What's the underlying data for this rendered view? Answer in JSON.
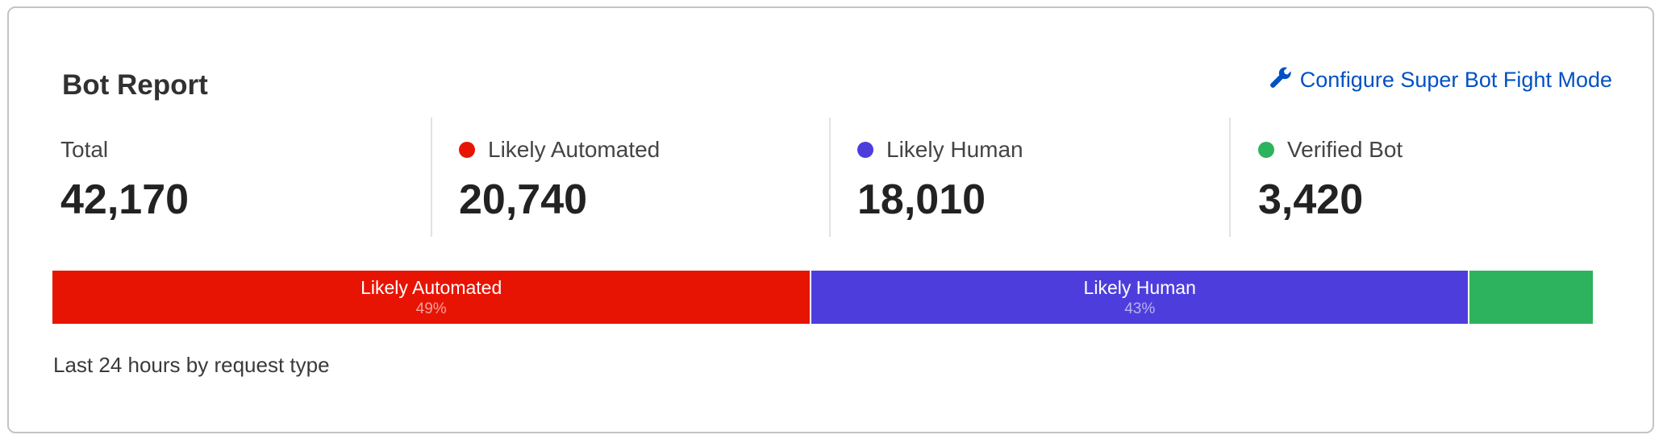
{
  "card": {
    "title": "Bot Report",
    "configure_link": {
      "label": "Configure Super Bot Fight Mode",
      "icon": "wrench-icon"
    },
    "stats": [
      {
        "label": "Total",
        "value": "42,170",
        "color": null
      },
      {
        "label": "Likely Automated",
        "value": "20,740",
        "color": "#e81403"
      },
      {
        "label": "Likely Human",
        "value": "18,010",
        "color": "#4e3ddd"
      },
      {
        "label": "Verified Bot",
        "value": "3,420",
        "color": "#2db35d"
      }
    ],
    "footer": "Last 24 hours by request type"
  },
  "chart_data": {
    "type": "bar",
    "orientation": "horizontal-stacked",
    "categories": [
      "Likely Automated",
      "Likely Human",
      "Verified Bot"
    ],
    "values": [
      20740,
      18010,
      3420
    ],
    "segments": [
      {
        "label": "Likely Automated",
        "percent_label": "49%",
        "value": 20740,
        "color": "#e81403"
      },
      {
        "label": "Likely Human",
        "percent_label": "43%",
        "value": 18010,
        "color": "#4e3ddd"
      },
      {
        "label": "",
        "percent_label": "",
        "value": 3420,
        "color": "#2db35d"
      }
    ]
  }
}
